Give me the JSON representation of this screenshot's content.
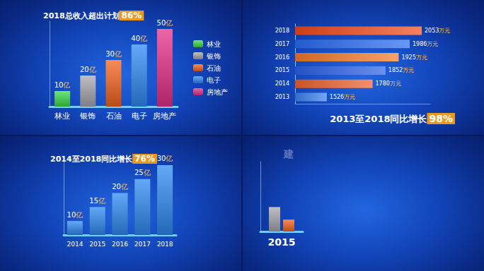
{
  "chart_data": [
    {
      "type": "bar",
      "title": "2018总收入超出计划86%",
      "categories": [
        "林业",
        "银饰",
        "石油",
        "电子",
        "房地产"
      ],
      "values": [
        10,
        20,
        30,
        40,
        50
      ],
      "value_labels": [
        "10亿",
        "20亿",
        "30亿",
        "40亿",
        "50亿"
      ],
      "colors": [
        "#3ddc4a",
        "#a8a8b0",
        "#f5641e",
        "#2f8cf5",
        "#e8308c"
      ],
      "ylim": [
        0,
        55
      ],
      "legend": "right",
      "data_labels": true,
      "tick_labels": "x"
    },
    {
      "type": "bar",
      "orientation": "horizontal",
      "title": "2013至2018同比增长98%",
      "categories": [
        "2018",
        "2017",
        "2016",
        "2015",
        "2014",
        "2013"
      ],
      "values": [
        2053,
        1986,
        1925,
        1852,
        1780,
        1526
      ],
      "value_labels": [
        "2053万元",
        "1986万元",
        "1925万元",
        "1852万元",
        "1780万元",
        "1526万元"
      ],
      "colors": [
        "#f04a1a",
        "#2a6af0",
        "#f07a2a",
        "#2a60e8",
        "#f0602a",
        "#3a80f0"
      ],
      "xlim": [
        1350,
        2100
      ],
      "data_labels": true,
      "tick_labels": "y"
    },
    {
      "type": "bar",
      "title": "2014至2018同比增长76%",
      "categories": [
        "2014",
        "2015",
        "2016",
        "2017",
        "2018"
      ],
      "values": [
        10,
        15,
        20,
        25,
        30
      ],
      "value_labels": [
        "10亿",
        "15亿",
        "20亿",
        "25亿",
        "30亿"
      ],
      "color": "#2f8cf5",
      "ylim": [
        5,
        33
      ],
      "data_labels": true,
      "tick_labels": "x"
    },
    {
      "type": "bar",
      "categories": [
        "2015"
      ],
      "series": [
        {
          "color": "#a8a8b0",
          "values": [
            35
          ]
        },
        {
          "color": "#f5641e",
          "values": [
            17
          ]
        }
      ],
      "ylim": [
        0,
        100
      ],
      "tick_labels": "x",
      "annotations": [
        "建"
      ]
    }
  ]
}
